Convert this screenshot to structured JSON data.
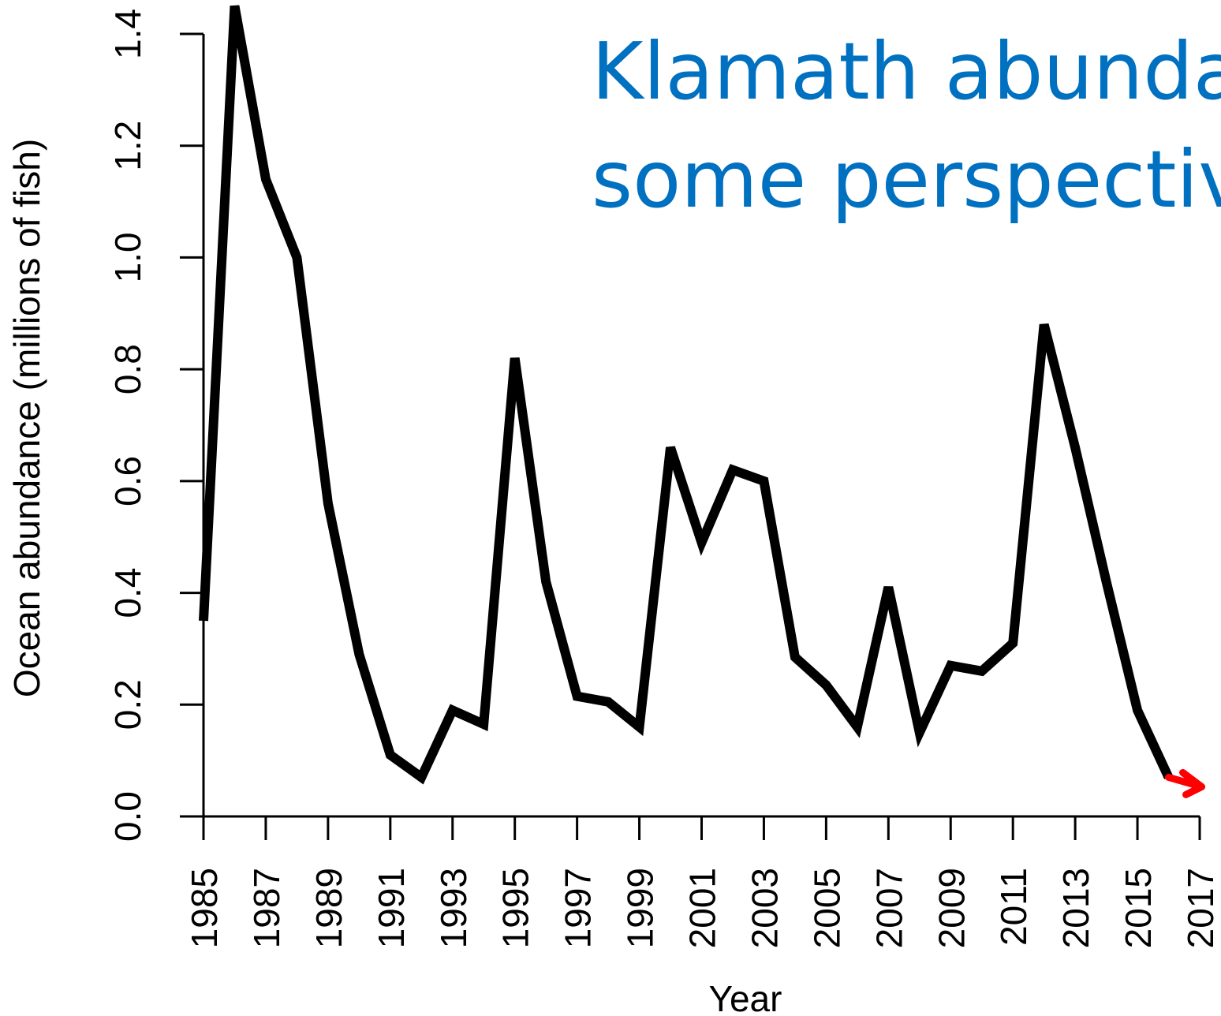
{
  "chart_data": {
    "type": "line",
    "title": [
      "Klamath abundance",
      "some perspective"
    ],
    "x_label": "Year",
    "y_label": "Ocean abundance (millions of fish)",
    "x": [
      1985,
      1986,
      1987,
      1988,
      1989,
      1990,
      1991,
      1992,
      1993,
      1994,
      1995,
      1996,
      1997,
      1998,
      1999,
      2000,
      2001,
      2002,
      2003,
      2004,
      2005,
      2006,
      2007,
      2008,
      2009,
      2010,
      2011,
      2012,
      2013,
      2014,
      2015,
      2016
    ],
    "series": [
      {
        "name": "Ocean abundance",
        "color": "#000000",
        "values": [
          0.35,
          1.45,
          1.14,
          1.0,
          0.56,
          0.29,
          0.11,
          0.07,
          0.19,
          0.165,
          0.82,
          0.42,
          0.215,
          0.205,
          0.16,
          0.66,
          0.49,
          0.62,
          0.6,
          0.285,
          0.235,
          0.16,
          0.41,
          0.15,
          0.27,
          0.26,
          0.31,
          0.88,
          0.66,
          0.42,
          0.19,
          0.07
        ]
      }
    ],
    "xlim": [
      1985,
      2017
    ],
    "xticks": [
      1985,
      1987,
      1989,
      1991,
      1993,
      1995,
      1997,
      1999,
      2001,
      2003,
      2005,
      2007,
      2009,
      2011,
      2013,
      2015,
      2017
    ],
    "ylim": [
      0,
      1.4
    ],
    "yticks": [
      {
        "value": 0,
        "label": "0.0"
      },
      0.2,
      0.4,
      0.6,
      0.8,
      {
        "value": 1,
        "label": "1.0"
      },
      1.2,
      1.4
    ],
    "arrow_color": "#ff0000"
  }
}
